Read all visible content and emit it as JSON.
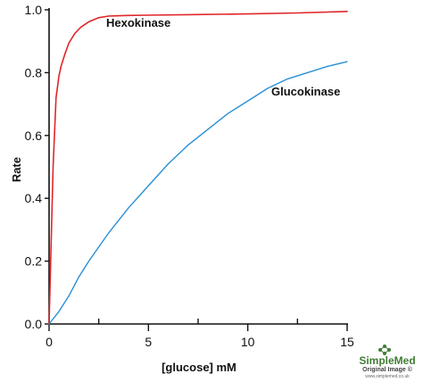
{
  "chart_data": {
    "type": "line",
    "xlabel": "[glucose] mM",
    "ylabel": "Rate",
    "xlim": [
      0,
      15
    ],
    "ylim": [
      0,
      1.0
    ],
    "x_ticks": [
      0,
      5,
      10,
      15
    ],
    "x_minor_ticks": [
      2.5,
      7.5,
      12.5
    ],
    "y_ticks": [
      0,
      0.2,
      0.4,
      0.6,
      0.8,
      1.0
    ],
    "y_tick_labels": [
      "0.0",
      "0.2",
      "0.4",
      "0.6",
      "0.8",
      "1.0"
    ],
    "grid": false,
    "series": [
      {
        "name": "Hexokinase",
        "color": "#e0262b",
        "x": [
          0,
          0.2,
          0.35,
          0.5,
          0.6,
          0.8,
          1.0,
          1.3,
          1.6,
          2.0,
          2.5,
          3.0,
          4.0,
          5.0,
          7.5,
          10.0,
          12.5,
          15.0
        ],
        "y": [
          0.0,
          0.5,
          0.72,
          0.79,
          0.82,
          0.86,
          0.895,
          0.925,
          0.945,
          0.962,
          0.975,
          0.98,
          0.982,
          0.983,
          0.985,
          0.987,
          0.99,
          0.995
        ]
      },
      {
        "name": "Glucokinase",
        "color": "#2a8fd6",
        "x": [
          0,
          0.5,
          1.0,
          1.5,
          2.0,
          3.0,
          4.0,
          5.0,
          6.0,
          7.0,
          8.0,
          9.0,
          10.0,
          11.0,
          12.0,
          13.0,
          14.0,
          15.0
        ],
        "y": [
          0.0,
          0.04,
          0.09,
          0.15,
          0.2,
          0.29,
          0.37,
          0.44,
          0.51,
          0.57,
          0.62,
          0.67,
          0.71,
          0.75,
          0.78,
          0.8,
          0.82,
          0.835
        ]
      }
    ]
  },
  "watermark": {
    "brand": "SimpleMed",
    "tagline": "Original Image ©",
    "url": "www.simplemed.co.uk",
    "color": "#3f7d34"
  }
}
